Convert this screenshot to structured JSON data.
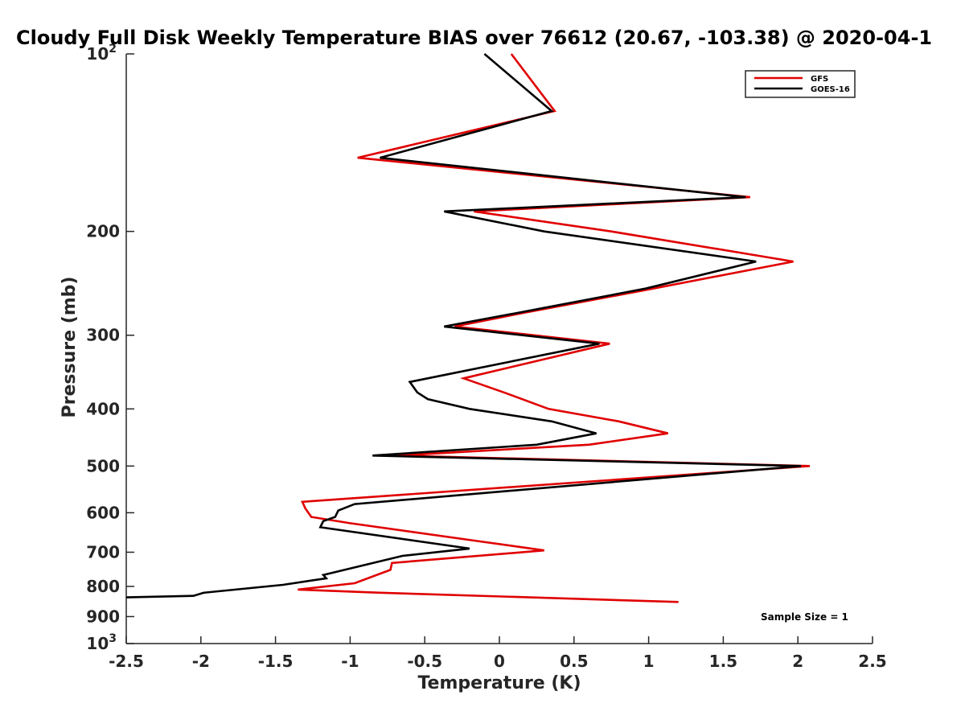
{
  "chart_data": {
    "type": "line",
    "title": "Cloudy Full Disk Weekly Temperature BIAS over 76612 (20.67, -103.38) @ 2020-04-1",
    "xlabel": "Temperature (K)",
    "ylabel": "Pressure (mb)",
    "xlim": [
      -2.5,
      2.5
    ],
    "ylim": [
      100,
      1000
    ],
    "yscale": "log",
    "y_reversed": true,
    "x_ticks": [
      -2.5,
      -2,
      -1.5,
      -1,
      -0.5,
      0,
      0.5,
      1,
      1.5,
      2,
      2.5
    ],
    "x_tick_labels": [
      "-2.5",
      "-2",
      "-1.5",
      "-1",
      "-0.5",
      "0",
      "0.5",
      "1",
      "1.5",
      "2",
      "2.5"
    ],
    "y_ticks": [
      200,
      300,
      400,
      500,
      600,
      700,
      800,
      900
    ],
    "y_tick_labels": [
      "200",
      "300",
      "400",
      "500",
      "600",
      "700",
      "800",
      "900"
    ],
    "y_end_labels": [
      {
        "base": "10",
        "exp": "2",
        "value": 100
      },
      {
        "base": "10",
        "exp": "3",
        "value": 1000
      }
    ],
    "legend_position": "top-right",
    "annotation": "Sample Size = 1",
    "series": [
      {
        "name": "GFS",
        "color": "#e00000",
        "points": [
          [
            0.08,
            100
          ],
          [
            0.37,
            125
          ],
          [
            -0.95,
            150
          ],
          [
            1.68,
            175
          ],
          [
            -0.17,
            185
          ],
          [
            0.75,
            200
          ],
          [
            1.97,
            225
          ],
          [
            1.03,
            250
          ],
          [
            0.16,
            275
          ],
          [
            -0.3,
            290
          ],
          [
            0.74,
            310
          ],
          [
            -0.24,
            355
          ],
          [
            0.03,
            375
          ],
          [
            0.33,
            400
          ],
          [
            0.8,
            420
          ],
          [
            1.13,
            440
          ],
          [
            0.6,
            460
          ],
          [
            -0.68,
            480
          ],
          [
            2.08,
            500
          ],
          [
            -1.32,
            575
          ],
          [
            -1.3,
            590
          ],
          [
            -1.26,
            610
          ],
          [
            -1.0,
            625
          ],
          [
            -0.15,
            670
          ],
          [
            0.3,
            695
          ],
          [
            -0.72,
            730
          ],
          [
            -0.73,
            750
          ],
          [
            -0.97,
            790
          ],
          [
            -1.35,
            810
          ],
          [
            -0.8,
            820
          ],
          [
            1.2,
            850
          ]
        ]
      },
      {
        "name": "GOES-16",
        "color": "#000000",
        "points": [
          [
            -0.1,
            100
          ],
          [
            0.35,
            125
          ],
          [
            -0.8,
            150
          ],
          [
            1.65,
            175
          ],
          [
            -0.37,
            185
          ],
          [
            0.3,
            200
          ],
          [
            1.72,
            225
          ],
          [
            0.98,
            250
          ],
          [
            0.12,
            275
          ],
          [
            -0.37,
            290
          ],
          [
            0.67,
            310
          ],
          [
            -0.6,
            360
          ],
          [
            -0.55,
            375
          ],
          [
            -0.48,
            385
          ],
          [
            -0.2,
            400
          ],
          [
            0.35,
            420
          ],
          [
            0.65,
            440
          ],
          [
            0.25,
            460
          ],
          [
            -0.85,
            480
          ],
          [
            2.02,
            500
          ],
          [
            -0.97,
            580
          ],
          [
            -1.08,
            595
          ],
          [
            -1.1,
            610
          ],
          [
            -1.18,
            620
          ],
          [
            -1.2,
            635
          ],
          [
            -0.2,
            690
          ],
          [
            -0.65,
            710
          ],
          [
            -1.18,
            765
          ],
          [
            -1.16,
            775
          ],
          [
            -1.45,
            795
          ],
          [
            -1.98,
            820
          ],
          [
            -2.05,
            830
          ],
          [
            -2.5,
            835
          ]
        ]
      }
    ]
  }
}
